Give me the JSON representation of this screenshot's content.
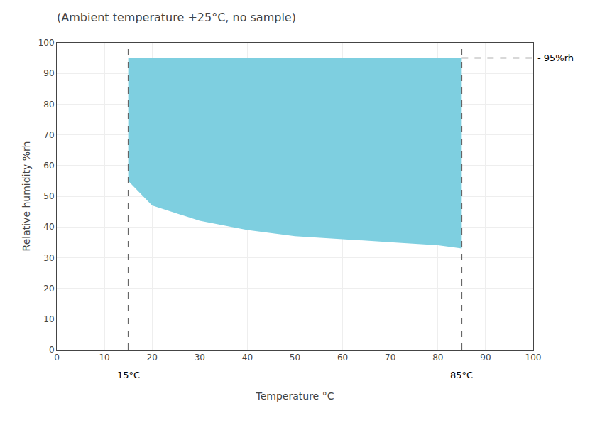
{
  "chart_data": {
    "type": "area",
    "title": "(Ambient temperature +25°C, no sample)",
    "xlabel": "Temperature °C",
    "ylabel": "Relative humidity %rh",
    "xlim": [
      0,
      100
    ],
    "ylim": [
      0,
      100
    ],
    "xticks": [
      0,
      10,
      20,
      30,
      40,
      50,
      60,
      70,
      80,
      90,
      100
    ],
    "yticks": [
      0,
      10,
      20,
      30,
      40,
      50,
      60,
      70,
      80,
      90,
      100
    ],
    "grid": true,
    "series": [
      {
        "type": "area",
        "color": "#7ecfe0",
        "x": [
          15,
          85
        ],
        "values": [
          95,
          95
        ]
      },
      {
        "type": "area",
        "color": "#7ecfe0",
        "x": [
          15,
          20,
          30,
          40,
          50,
          60,
          70,
          80,
          85
        ],
        "values": [
          55,
          47,
          42,
          39,
          37,
          36,
          35,
          34,
          33
        ]
      },
      {
        "type": "line",
        "line_style": "dashed",
        "color": "#666666",
        "x": [
          15,
          15
        ],
        "values": [
          0,
          100
        ]
      },
      {
        "type": "line",
        "line_style": "dashed",
        "color": "#666666",
        "x": [
          85,
          85
        ],
        "values": [
          0,
          100
        ]
      },
      {
        "type": "line",
        "line_style": "dashed",
        "color": "#666666",
        "x": [
          85,
          100
        ],
        "values": [
          95,
          95
        ]
      }
    ],
    "annotations": [
      {
        "text": "- 95%rh",
        "x": 100,
        "y": 95
      },
      {
        "text": "15°C",
        "x": 15,
        "y": 0
      },
      {
        "text": "85°C",
        "x": 85,
        "y": 0
      }
    ]
  }
}
